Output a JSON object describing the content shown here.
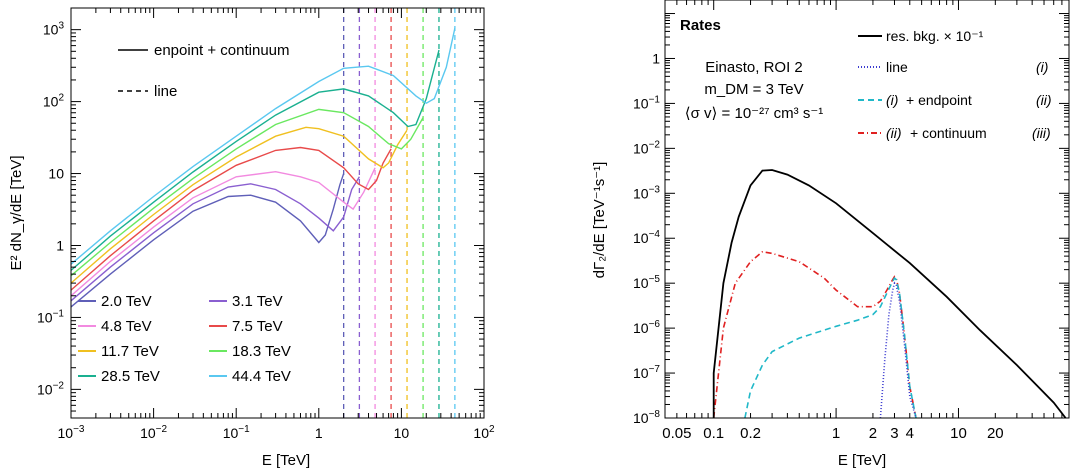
{
  "chart_data": [
    {
      "type": "line",
      "xlabel": "E [TeV]",
      "ylabel": "E² dN_γ/dE [TeV]",
      "x_scale": "log",
      "y_scale": "log",
      "xlim": [
        0.001,
        100
      ],
      "ylim": [
        0.004,
        2000
      ],
      "x_ticks": [
        {
          "v": 0.001,
          "b": "10",
          "e": "−3"
        },
        {
          "v": 0.01,
          "b": "10",
          "e": "−2"
        },
        {
          "v": 0.1,
          "b": "10",
          "e": "−1"
        },
        {
          "v": 1,
          "b": "1",
          "e": ""
        },
        {
          "v": 10,
          "b": "10",
          "e": ""
        },
        {
          "v": 100,
          "b": "10",
          "e": "2"
        }
      ],
      "y_ticks": [
        {
          "v": 0.01,
          "b": "10",
          "e": "−2"
        },
        {
          "v": 0.1,
          "b": "10",
          "e": "−1"
        },
        {
          "v": 1,
          "b": "1",
          "e": ""
        },
        {
          "v": 10,
          "b": "10",
          "e": ""
        },
        {
          "v": 100,
          "b": "10",
          "e": "2"
        },
        {
          "v": 1000,
          "b": "10",
          "e": "3"
        }
      ],
      "style_legend": [
        {
          "label": "enpoint + continuum",
          "dash": "solid"
        },
        {
          "label": "line",
          "dash": "dashed"
        }
      ],
      "series": [
        {
          "name": "2.0 TeV",
          "mass": 2.0,
          "color": "#5f5fb8",
          "x": [
            0.001,
            0.003,
            0.01,
            0.03,
            0.08,
            0.15,
            0.3,
            0.6,
            1.0,
            1.2,
            1.5,
            1.8,
            2.0
          ],
          "y": [
            0.14,
            0.4,
            1.2,
            3.0,
            4.8,
            5.0,
            4.0,
            2.2,
            1.1,
            1.4,
            3.2,
            7.0,
            10.0
          ]
        },
        {
          "name": "3.1 TeV",
          "mass": 3.1,
          "color": "#8a5fd0",
          "x": [
            0.001,
            0.003,
            0.01,
            0.03,
            0.08,
            0.15,
            0.3,
            0.6,
            1.0,
            1.5,
            2.0,
            2.5,
            3.1
          ],
          "y": [
            0.17,
            0.5,
            1.5,
            3.8,
            6.5,
            7.2,
            6.0,
            3.8,
            2.4,
            1.6,
            2.5,
            6.0,
            9.0
          ]
        },
        {
          "name": "4.8 TeV",
          "mass": 4.8,
          "color": "#f28ae0",
          "x": [
            0.001,
            0.003,
            0.01,
            0.03,
            0.1,
            0.3,
            0.6,
            1.0,
            2.0,
            2.6,
            3.5,
            4.8
          ],
          "y": [
            0.2,
            0.6,
            1.8,
            4.6,
            9.0,
            10.6,
            9.0,
            7.5,
            4.0,
            3.2,
            5.5,
            12.0
          ]
        },
        {
          "name": "7.5 TeV",
          "mass": 7.5,
          "color": "#e84a4a",
          "x": [
            0.001,
            0.003,
            0.01,
            0.03,
            0.1,
            0.3,
            0.6,
            1.0,
            2.0,
            3.0,
            4.0,
            5.0,
            6.0,
            7.5
          ],
          "y": [
            0.24,
            0.72,
            2.2,
            5.8,
            13,
            21,
            23,
            21,
            12,
            7.2,
            6.0,
            8.0,
            14,
            22
          ]
        },
        {
          "name": "11.7 TeV",
          "mass": 11.7,
          "color": "#f0c020",
          "x": [
            0.001,
            0.003,
            0.01,
            0.03,
            0.1,
            0.3,
            0.7,
            1.0,
            2.0,
            4.0,
            6.0,
            7.0,
            9.0,
            11.7
          ],
          "y": [
            0.3,
            0.9,
            2.7,
            7.0,
            17,
            33,
            44,
            42,
            33,
            16,
            12,
            14,
            25,
            40
          ]
        },
        {
          "name": "18.3 TeV",
          "mass": 18.3,
          "color": "#6ae860",
          "x": [
            0.001,
            0.003,
            0.01,
            0.03,
            0.1,
            0.3,
            1.0,
            2.0,
            4.0,
            7.0,
            10.0,
            13.0,
            18.3
          ],
          "y": [
            0.38,
            1.1,
            3.3,
            8.5,
            22,
            48,
            78,
            70,
            45,
            26,
            22,
            30,
            60
          ]
        },
        {
          "name": "28.5 TeV",
          "mass": 28.5,
          "color": "#1ab090",
          "x": [
            0.001,
            0.003,
            0.01,
            0.03,
            0.1,
            0.3,
            1.0,
            2.0,
            4.0,
            8.0,
            12.0,
            15.0,
            20.0,
            28.5
          ],
          "y": [
            0.45,
            1.35,
            4.0,
            10.5,
            28,
            65,
            135,
            150,
            120,
            70,
            45,
            48,
            110,
            520
          ]
        },
        {
          "name": "44.4 TeV",
          "mass": 44.4,
          "color": "#5ac8f0",
          "x": [
            0.001,
            0.003,
            0.01,
            0.03,
            0.1,
            0.3,
            1.0,
            2.0,
            4.0,
            8.0,
            15.0,
            20.0,
            25.0,
            35.0,
            44.4
          ],
          "y": [
            0.55,
            1.6,
            4.8,
            12.5,
            33,
            80,
            190,
            290,
            310,
            230,
            120,
            95,
            110,
            300,
            1050
          ]
        }
      ],
      "lines": [
        2.0,
        3.1,
        4.8,
        7.5,
        11.7,
        18.3,
        28.5,
        44.4
      ]
    },
    {
      "type": "line",
      "xlabel": "E [TeV]",
      "ylabel": "dΓ₂/dE [TeV⁻¹s⁻¹]",
      "x_scale": "log",
      "y_scale": "log",
      "xlim": [
        0.04,
        80
      ],
      "ylim": [
        1e-08,
        20
      ],
      "x_ticks": [
        {
          "v": 0.05,
          "label": "0.05"
        },
        {
          "v": 0.1,
          "label": "0.1"
        },
        {
          "v": 0.2,
          "label": "0.2"
        },
        {
          "v": 1,
          "label": "1"
        },
        {
          "v": 2,
          "label": "2"
        },
        {
          "v": 3,
          "label": "3"
        },
        {
          "v": 4,
          "label": "4"
        },
        {
          "v": 10,
          "label": "10"
        },
        {
          "v": 20,
          "label": "20"
        }
      ],
      "y_ticks": [
        {
          "v": 1e-08,
          "b": "10",
          "e": "−8"
        },
        {
          "v": 1e-07,
          "b": "10",
          "e": "−7"
        },
        {
          "v": 1e-06,
          "b": "10",
          "e": "−6"
        },
        {
          "v": 1e-05,
          "b": "10",
          "e": "−5"
        },
        {
          "v": 0.0001,
          "b": "10",
          "e": "−4"
        },
        {
          "v": 0.001,
          "b": "10",
          "e": "−3"
        },
        {
          "v": 0.01,
          "b": "10",
          "e": "−2"
        },
        {
          "v": 0.1,
          "b": "10",
          "e": "−1"
        },
        {
          "v": 1,
          "b": "1",
          "e": ""
        }
      ],
      "title": "Rates",
      "annotations": [
        "Einasto, ROI 2",
        "m_DM = 3 TeV",
        "⟨σ v⟩ = 10⁻²⁷ cm³ s⁻¹"
      ],
      "legend_tags": [
        "(i)",
        "(ii)",
        "(iii)"
      ],
      "series": [
        {
          "name": "res. bkg. × 10⁻¹",
          "color": "#000000",
          "dash": "solid",
          "x": [
            0.1,
            0.1,
            0.12,
            0.14,
            0.16,
            0.2,
            0.25,
            0.3,
            0.4,
            0.6,
            1,
            2,
            4,
            8,
            15,
            30,
            60,
            75
          ],
          "y": [
            1e-08,
            1e-07,
            1e-05,
            8e-05,
            0.0003,
            0.0015,
            0.0032,
            0.0033,
            0.0026,
            0.0015,
            0.0006,
            0.00013,
            2.8e-05,
            5e-06,
            9e-07,
            1.5e-07,
            2.2e-08,
            1e-08
          ]
        },
        {
          "name": "line",
          "color": "#3a3ad0",
          "dash": "dotted",
          "x": [
            2.3,
            2.5,
            2.7,
            2.9,
            3.0,
            3.1,
            3.3,
            3.6,
            4.0,
            4.5
          ],
          "y": [
            1e-08,
            2e-07,
            2e-06,
            7e-06,
            1e-05,
            9e-06,
            4e-06,
            5e-07,
            3e-08,
            1e-08
          ]
        },
        {
          "name": "+ endpoint",
          "color": "#20b8c8",
          "dash": "dashed",
          "x": [
            0.18,
            0.2,
            0.25,
            0.3,
            0.5,
            1.0,
            1.5,
            2.0,
            2.3,
            2.6,
            2.9,
            3.0,
            3.1,
            3.3,
            3.6,
            4.0,
            4.5
          ],
          "y": [
            1e-08,
            4e-08,
            1.5e-07,
            3e-07,
            6e-07,
            1.1e-06,
            1.5e-06,
            2e-06,
            3e-06,
            6e-06,
            1.1e-05,
            1.3e-05,
            1.2e-05,
            6e-06,
            8e-07,
            5e-08,
            1e-08
          ]
        },
        {
          "name": "+ continuum",
          "color": "#e02020",
          "dash": "dashdot",
          "x": [
            0.1,
            0.12,
            0.15,
            0.2,
            0.25,
            0.3,
            0.5,
            0.8,
            1.0,
            1.5,
            2.0,
            2.3,
            2.6,
            2.9,
            3.0,
            3.1,
            3.3,
            3.6,
            4.0,
            4.5
          ],
          "y": [
            1e-08,
            1e-06,
            1e-05,
            3e-05,
            5e-05,
            4.6e-05,
            3e-05,
            1.3e-05,
            7e-06,
            3e-06,
            3e-06,
            4e-06,
            7e-06,
            1.2e-05,
            1.4e-05,
            1.3e-05,
            6e-06,
            8e-07,
            5e-08,
            1e-08
          ]
        }
      ]
    }
  ]
}
